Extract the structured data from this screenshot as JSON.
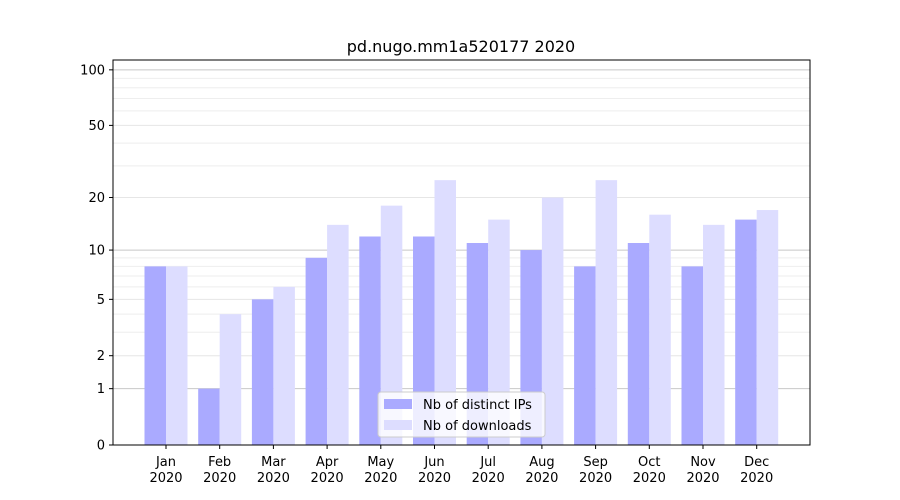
{
  "chart_data": {
    "type": "bar",
    "title": "pd.nugo.mm1a520177 2020",
    "categories": [
      "Jan\n2020",
      "Feb\n2020",
      "Mar\n2020",
      "Apr\n2020",
      "May\n2020",
      "Jun\n2020",
      "Jul\n2020",
      "Aug\n2020",
      "Sep\n2020",
      "Oct\n2020",
      "Nov\n2020",
      "Dec\n2020"
    ],
    "series": [
      {
        "name": "Nb of distinct IPs",
        "color": "#aaaaff",
        "values": [
          8,
          1,
          5,
          9,
          12,
          12,
          11,
          10,
          8,
          11,
          8,
          15
        ]
      },
      {
        "name": "Nb of downloads",
        "color": "#ddddff",
        "values": [
          8,
          4,
          6,
          14,
          18,
          25,
          15,
          20,
          25,
          16,
          14,
          17
        ]
      }
    ],
    "yscale": "log(1+y)",
    "yticks": [
      0,
      1,
      2,
      5,
      10,
      20,
      50,
      100
    ],
    "ylim": [
      0,
      113
    ],
    "grid": true,
    "legend": "bottom-center",
    "xlabel": "",
    "ylabel": ""
  }
}
